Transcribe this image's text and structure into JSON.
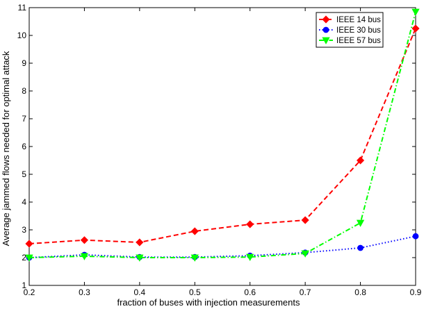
{
  "chart_data": {
    "type": "line",
    "xlabel": "fraction of buses with injection measurements",
    "ylabel": "Average jammed flows needed for optimal attack",
    "xlim": [
      0.2,
      0.9
    ],
    "ylim": [
      1,
      11
    ],
    "x": [
      0.2,
      0.3,
      0.4,
      0.5,
      0.6,
      0.7,
      0.8,
      0.9
    ],
    "x_ticks": [
      "0.2",
      "0.3",
      "0.4",
      "0.5",
      "0.6",
      "0.7",
      "0.8",
      "0.9"
    ],
    "y_ticks": [
      "1",
      "2",
      "3",
      "4",
      "5",
      "6",
      "7",
      "8",
      "9",
      "10",
      "11"
    ],
    "grid": false,
    "legend_position": "top-right",
    "series": [
      {
        "name": "IEEE 14 bus",
        "color": "#ff0000",
        "line_style": "dashed",
        "marker": "diamond",
        "values": [
          2.5,
          2.63,
          2.55,
          2.95,
          3.2,
          3.35,
          5.5,
          10.25
        ]
      },
      {
        "name": "IEEE 30 bus",
        "color": "#0000ff",
        "line_style": "dotted",
        "marker": "circle",
        "values": [
          2.0,
          2.1,
          2.02,
          2.02,
          2.07,
          2.18,
          2.35,
          2.77
        ]
      },
      {
        "name": "IEEE 57 bus",
        "color": "#00ff00",
        "line_style": "dash-dot",
        "marker": "triangle-down",
        "values": [
          2.0,
          2.05,
          2.0,
          2.0,
          2.02,
          2.15,
          3.25,
          10.85
        ]
      }
    ]
  }
}
